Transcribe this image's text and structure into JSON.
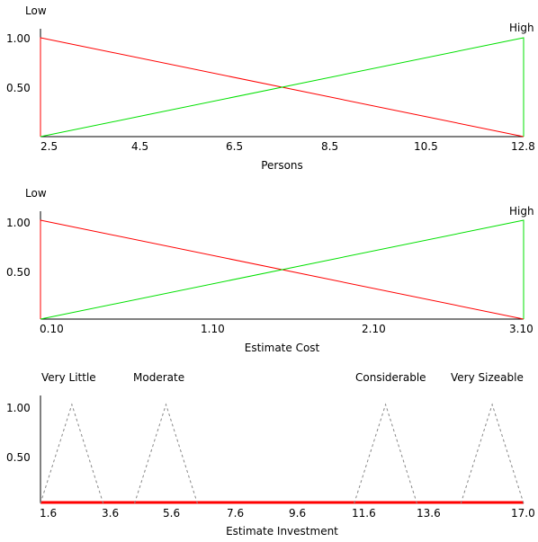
{
  "chart_data": [
    {
      "type": "line",
      "xlabel": "Persons",
      "x_ticks": [
        "2.5",
        "4.5",
        "6.5",
        "8.5",
        "10.5",
        "12.8"
      ],
      "x_range": [
        2.5,
        12.8
      ],
      "y_ticks": [
        "1.00",
        "0.50"
      ],
      "ylim": [
        0,
        1
      ],
      "grid": false,
      "series": [
        {
          "name": "Low",
          "color": "#ff0000",
          "style": "solid",
          "x": [
            2.5,
            2.5,
            12.8
          ],
          "y": [
            0,
            1,
            0
          ]
        },
        {
          "name": "High",
          "color": "#00e000",
          "style": "solid",
          "x": [
            2.5,
            12.8,
            12.8
          ],
          "y": [
            0,
            1,
            0
          ]
        }
      ]
    },
    {
      "type": "line",
      "xlabel": "Estimate Cost",
      "x_ticks": [
        "0.10",
        "1.10",
        "2.10",
        "3.10"
      ],
      "x_range": [
        0.1,
        3.1
      ],
      "y_ticks": [
        "1.00",
        "0.50"
      ],
      "ylim": [
        0,
        1
      ],
      "grid": false,
      "series": [
        {
          "name": "Low",
          "color": "#ff0000",
          "style": "solid",
          "x": [
            0.1,
            0.1,
            3.1
          ],
          "y": [
            0,
            1,
            0
          ]
        },
        {
          "name": "High",
          "color": "#00e000",
          "style": "solid",
          "x": [
            0.1,
            3.1,
            3.1
          ],
          "y": [
            0,
            1,
            0
          ]
        }
      ]
    },
    {
      "type": "line",
      "xlabel": "Estimate Investment",
      "x_ticks": [
        "1.6",
        "3.6",
        "5.6",
        "7.6",
        "9.6",
        "11.6",
        "13.6",
        "17.0"
      ],
      "x_range": [
        1.6,
        17.0
      ],
      "y_ticks": [
        "1.00",
        "0.50"
      ],
      "ylim": [
        0,
        1
      ],
      "grid": false,
      "series": [
        {
          "name": "Very Little",
          "color": "#888888",
          "style": "dashed",
          "x": [
            1.6,
            2.6,
            3.6
          ],
          "y": [
            0,
            1,
            0
          ]
        },
        {
          "name": "Moderate",
          "color": "#888888",
          "style": "dashed",
          "x": [
            4.6,
            5.6,
            6.6
          ],
          "y": [
            0,
            1,
            0
          ]
        },
        {
          "name": "Considerable",
          "color": "#888888",
          "style": "dashed",
          "x": [
            11.6,
            12.6,
            13.6
          ],
          "y": [
            0,
            1,
            0
          ]
        },
        {
          "name": "Very Sizeable",
          "color": "#888888",
          "style": "dashed",
          "x": [
            15.0,
            16.0,
            17.0
          ],
          "y": [
            0,
            1,
            0
          ]
        }
      ],
      "highlight_line": {
        "color": "#ff0000",
        "y": 0,
        "x": [
          1.6,
          17.0
        ]
      }
    }
  ]
}
